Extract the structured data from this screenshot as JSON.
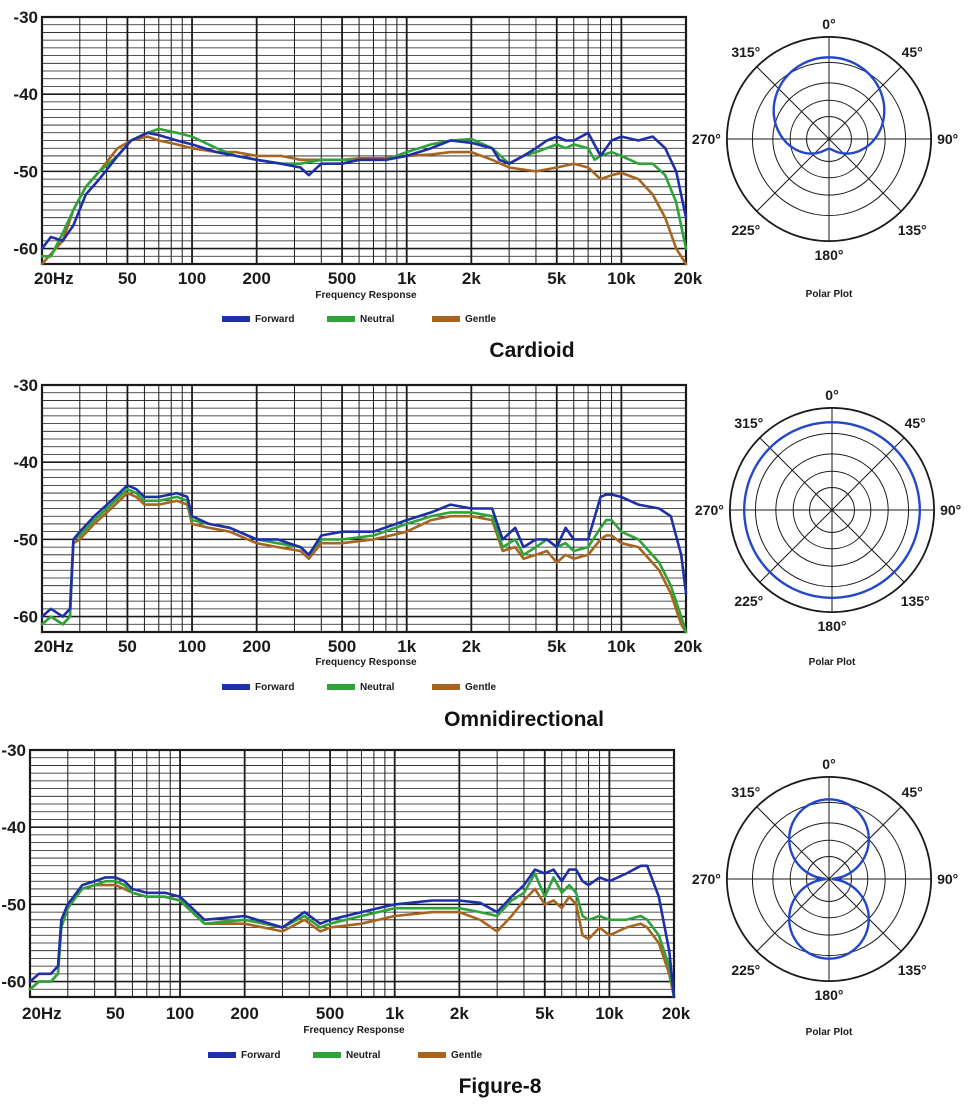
{
  "colors": {
    "Forward": "#1f2fa8",
    "Neutral": "#2fa33a",
    "Gentle": "#a8651f",
    "polar": "#2347c9",
    "grid": "#1a1a1a"
  },
  "legend": [
    "Forward",
    "Neutral",
    "Gentle"
  ],
  "charts": [
    {
      "title": "Cardioid",
      "chart_data": {
        "type": "line",
        "xlabel": "Frequency Response",
        "ylabel": "",
        "xscale": "log",
        "xlim": [
          20,
          20000
        ],
        "ylim": [
          -62,
          -30
        ],
        "yticks": [
          -30,
          -40,
          -50,
          -60
        ],
        "xticks": [
          "20Hz",
          "50",
          "100",
          "200",
          "500",
          "1k",
          "2k",
          "5k",
          "10k",
          "20k"
        ],
        "series": [
          {
            "name": "Forward",
            "x": [
              20,
              22,
              25,
              28,
              32,
              37,
              45,
              52,
              62,
              70,
              85,
              100,
              130,
              160,
              200,
              260,
              320,
              350,
              400,
              500,
              600,
              800,
              1000,
              1300,
              1600,
              2000,
              2500,
              2700,
              3000,
              3500,
              4000,
              4500,
              5000,
              5500,
              6000,
              6500,
              7000,
              8000,
              9000,
              10000,
              12000,
              14000,
              16000,
              18000,
              20000
            ],
            "y": [
              -60,
              -58.5,
              -59,
              -57,
              -53,
              -51,
              -48,
              -46,
              -45,
              -45.3,
              -46,
              -46.5,
              -47.5,
              -48,
              -48.5,
              -49,
              -49.5,
              -50.5,
              -49,
              -49,
              -48.5,
              -48.5,
              -48,
              -47,
              -46,
              -46.3,
              -47,
              -48.5,
              -49,
              -48,
              -47,
              -46,
              -45.5,
              -46,
              -46,
              -45.5,
              -45,
              -48,
              -46,
              -45.5,
              -46,
              -45.5,
              -47,
              -50,
              -56
            ]
          },
          {
            "name": "Neutral",
            "x": [
              20,
              22,
              25,
              28,
              32,
              37,
              45,
              52,
              62,
              70,
              85,
              100,
              130,
              160,
              200,
              260,
              320,
              400,
              500,
              600,
              800,
              1000,
              1300,
              1600,
              2000,
              2500,
              3000,
              3500,
              4000,
              5000,
              5500,
              6000,
              7000,
              7500,
              8000,
              9000,
              10000,
              12000,
              14000,
              16000,
              18000,
              20000
            ],
            "y": [
              -61,
              -61,
              -58,
              -55,
              -52,
              -50,
              -48,
              -46,
              -45,
              -44.5,
              -45,
              -45.5,
              -47,
              -48,
              -48.5,
              -49,
              -49,
              -48.5,
              -48.5,
              -48.5,
              -48.5,
              -47.5,
              -46.5,
              -46,
              -45.8,
              -47,
              -49,
              -48,
              -47.5,
              -46.5,
              -47,
              -46.5,
              -47,
              -48.5,
              -48,
              -47.5,
              -48,
              -49,
              -49,
              -50.5,
              -54,
              -60
            ]
          },
          {
            "name": "Gentle",
            "x": [
              20,
              25,
              28,
              32,
              37,
              45,
              52,
              62,
              70,
              85,
              100,
              130,
              160,
              200,
              260,
              320,
              400,
              500,
              600,
              800,
              1000,
              1300,
              1600,
              2000,
              2500,
              3000,
              4000,
              5000,
              6000,
              7000,
              8000,
              9000,
              10000,
              12000,
              14000,
              16000,
              18000,
              20000
            ],
            "y": [
              -62,
              -59,
              -55,
              -52,
              -50,
              -47,
              -46,
              -45.5,
              -46,
              -46.5,
              -47,
              -47.5,
              -47.5,
              -48,
              -48,
              -48.5,
              -48.5,
              -48.5,
              -48.3,
              -48.3,
              -48,
              -47.8,
              -47.5,
              -47.5,
              -48.5,
              -49.5,
              -50,
              -49.5,
              -49,
              -49.5,
              -51,
              -50.5,
              -50.2,
              -51,
              -53,
              -56,
              -60,
              -62
            ]
          }
        ]
      },
      "polar": {
        "caption": "Polar Plot",
        "labels": [
          "0°",
          "45°",
          "90°",
          "135°",
          "180°",
          "225°",
          "270°",
          "315°"
        ],
        "pattern": "cardioid"
      }
    },
    {
      "title": "Omnidirectional",
      "chart_data": {
        "type": "line",
        "xlabel": "Frequency Response",
        "ylabel": "",
        "xscale": "log",
        "xlim": [
          20,
          20000
        ],
        "ylim": [
          -62,
          -30
        ],
        "yticks": [
          -30,
          -40,
          -50,
          -60
        ],
        "xticks": [
          "20Hz",
          "50",
          "100",
          "200",
          "500",
          "1k",
          "2k",
          "5k",
          "10k",
          "20k"
        ],
        "series": [
          {
            "name": "Forward",
            "x": [
              20,
              22,
              25,
              27,
              28,
              30,
              35,
              42,
              50,
              55,
              60,
              70,
              85,
              95,
              100,
              120,
              150,
              200,
              250,
              320,
              350,
              400,
              500,
              700,
              1000,
              1300,
              1600,
              2000,
              2500,
              2800,
              3200,
              3500,
              4000,
              4500,
              5000,
              5500,
              6000,
              7000,
              8000,
              8500,
              9000,
              10000,
              12000,
              15000,
              17000,
              19000,
              20000
            ],
            "y": [
              -60,
              -59,
              -60,
              -59,
              -50,
              -49,
              -47,
              -45,
              -43,
              -43.5,
              -44.5,
              -44.5,
              -44,
              -44.5,
              -47,
              -48,
              -48.5,
              -50,
              -50,
              -51,
              -52,
              -49.5,
              -49,
              -49,
              -47.5,
              -46.5,
              -45.5,
              -46,
              -46,
              -50,
              -48.5,
              -51,
              -50,
              -50,
              -51,
              -48.5,
              -50,
              -50,
              -44.5,
              -44.2,
              -44.2,
              -44.5,
              -45.5,
              -46,
              -47,
              -52,
              -57
            ]
          },
          {
            "name": "Neutral",
            "x": [
              20,
              22,
              25,
              27,
              28,
              30,
              35,
              42,
              50,
              55,
              60,
              70,
              85,
              95,
              100,
              120,
              150,
              200,
              250,
              320,
              350,
              400,
              500,
              700,
              1000,
              1300,
              1600,
              2000,
              2500,
              2800,
              3200,
              3500,
              4000,
              4500,
              5000,
              5500,
              6000,
              7000,
              8000,
              8500,
              9000,
              10000,
              12000,
              15000,
              17000,
              19000,
              20000
            ],
            "y": [
              -61,
              -60,
              -61,
              -60,
              -50,
              -49.5,
              -47.5,
              -45.5,
              -43.5,
              -44,
              -45,
              -45,
              -44.5,
              -45,
              -47.5,
              -48,
              -48.5,
              -50,
              -50.5,
              -51,
              -52,
              -50,
              -50,
              -49.5,
              -48,
              -47,
              -46.5,
              -46.5,
              -47,
              -51,
              -50,
              -52,
              -51,
              -50,
              -51,
              -50.5,
              -51.5,
              -51,
              -48.5,
              -47.5,
              -47.5,
              -49,
              -50,
              -53,
              -56,
              -60,
              -62
            ]
          },
          {
            "name": "Gentle",
            "x": [
              20,
              22,
              25,
              27,
              28,
              30,
              35,
              42,
              50,
              55,
              60,
              70,
              85,
              95,
              100,
              120,
              150,
              200,
              250,
              320,
              350,
              400,
              500,
              700,
              1000,
              1300,
              1600,
              2000,
              2500,
              2800,
              3200,
              3500,
              4000,
              4500,
              5000,
              5500,
              6000,
              7000,
              8000,
              8500,
              9000,
              10000,
              12000,
              15000,
              17000,
              19000,
              20000
            ],
            "y": [
              -61,
              -60,
              -61,
              -60,
              -50.5,
              -50,
              -48,
              -46,
              -44,
              -44.5,
              -45.5,
              -45.5,
              -45,
              -45.5,
              -48,
              -48.5,
              -49,
              -50.5,
              -51,
              -51.5,
              -52.5,
              -50.5,
              -50.5,
              -50,
              -49,
              -47.5,
              -47,
              -47,
              -47.5,
              -51.5,
              -51,
              -52.5,
              -52,
              -51.5,
              -53,
              -52,
              -52.5,
              -52,
              -50,
              -49.5,
              -49.5,
              -50.5,
              -51,
              -54,
              -57,
              -61,
              -62
            ]
          }
        ]
      },
      "polar": {
        "caption": "Polar Plot",
        "labels": [
          "0°",
          "45°",
          "90°",
          "135°",
          "180°",
          "225°",
          "270°",
          "315°"
        ],
        "pattern": "omni"
      }
    },
    {
      "title": "Figure-8",
      "chart_data": {
        "type": "line",
        "xlabel": "Frequency Response",
        "ylabel": "",
        "xscale": "log",
        "xlim": [
          20,
          20000
        ],
        "ylim": [
          -62,
          -30
        ],
        "yticks": [
          -30,
          -40,
          -50,
          -60
        ],
        "xticks": [
          "20Hz",
          "50",
          "100",
          "200",
          "500",
          "1k",
          "2k",
          "5k",
          "10k",
          "20k"
        ],
        "series": [
          {
            "name": "Forward",
            "x": [
              20,
              22,
              25,
              27,
              28,
              30,
              35,
              40,
              45,
              50,
              55,
              60,
              70,
              85,
              100,
              130,
              200,
              300,
              380,
              450,
              500,
              700,
              1000,
              1500,
              2000,
              2500,
              3000,
              3500,
              4000,
              4500,
              5000,
              5500,
              6000,
              6500,
              7000,
              7500,
              8000,
              9000,
              10000,
              12000,
              14000,
              15000,
              17000,
              19000,
              20000
            ],
            "y": [
              -60,
              -59,
              -59,
              -58,
              -52,
              -50,
              -47.5,
              -47,
              -46.5,
              -46.5,
              -47,
              -48,
              -48.5,
              -48.5,
              -49,
              -52,
              -51.5,
              -53,
              -51,
              -52.5,
              -52,
              -51,
              -50,
              -49.5,
              -49.5,
              -49.8,
              -51,
              -49,
              -47.5,
              -45.5,
              -46,
              -45.5,
              -47,
              -45.5,
              -45.5,
              -47,
              -47.5,
              -46.5,
              -47,
              -46,
              -45,
              -45,
              -49,
              -56,
              -62
            ]
          },
          {
            "name": "Neutral",
            "x": [
              20,
              22,
              25,
              27,
              28,
              30,
              35,
              40,
              45,
              50,
              55,
              60,
              70,
              85,
              100,
              130,
              200,
              300,
              380,
              450,
              500,
              700,
              1000,
              1500,
              2000,
              2500,
              3000,
              3500,
              4000,
              4500,
              5000,
              5500,
              6000,
              6500,
              7000,
              7500,
              8000,
              9000,
              10000,
              12000,
              14000,
              15000,
              17000,
              19000,
              20000
            ],
            "y": [
              -61,
              -60,
              -60,
              -59,
              -53,
              -50.5,
              -48,
              -47.5,
              -47,
              -47,
              -47.5,
              -48.5,
              -49,
              -49,
              -49.5,
              -52.5,
              -52,
              -53,
              -51.5,
              -53,
              -52.5,
              -51.5,
              -50.5,
              -50.5,
              -50.5,
              -51,
              -51.5,
              -49.5,
              -48.5,
              -46,
              -49,
              -46.5,
              -48.5,
              -47.5,
              -48.5,
              -51.5,
              -52,
              -51.5,
              -52,
              -52,
              -51.5,
              -52,
              -54,
              -58,
              -62
            ]
          },
          {
            "name": "Gentle",
            "x": [
              20,
              22,
              25,
              27,
              28,
              30,
              35,
              40,
              45,
              50,
              55,
              60,
              70,
              85,
              100,
              130,
              200,
              300,
              380,
              450,
              500,
              700,
              1000,
              1500,
              2000,
              2500,
              3000,
              3500,
              4000,
              4500,
              5000,
              5500,
              6000,
              6500,
              7000,
              7500,
              8000,
              9000,
              10000,
              12000,
              14000,
              15000,
              17000,
              19000,
              20000
            ],
            "y": [
              -61,
              -60,
              -60,
              -59,
              -52,
              -50,
              -48,
              -47.5,
              -47.5,
              -47.5,
              -48,
              -48.5,
              -49,
              -49,
              -49.5,
              -52.5,
              -52.5,
              -53.5,
              -52,
              -53.5,
              -53,
              -52.5,
              -51.5,
              -51,
              -51,
              -52,
              -53.5,
              -51.5,
              -49.5,
              -48,
              -50,
              -49.5,
              -50.5,
              -49,
              -50,
              -54,
              -54.5,
              -53,
              -54,
              -53,
              -52.5,
              -53,
              -55,
              -59,
              -62
            ]
          }
        ]
      },
      "polar": {
        "caption": "Polar Plot",
        "labels": [
          "0°",
          "45°",
          "90°",
          "135°",
          "180°",
          "225°",
          "270°",
          "315°"
        ],
        "pattern": "figure8"
      }
    }
  ]
}
